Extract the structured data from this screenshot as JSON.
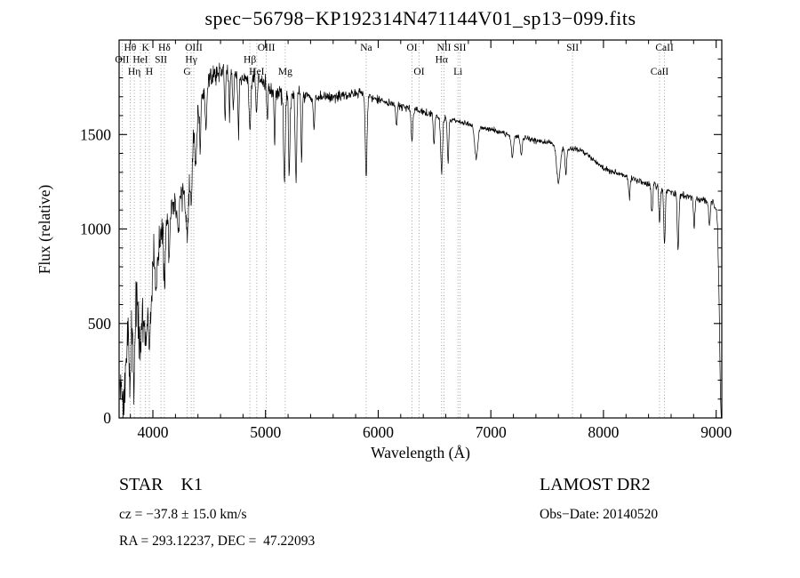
{
  "chart_data": {
    "type": "line",
    "title": "spec−56798−KP192314N471144V01_sp13−099.fits",
    "xlabel": "Wavelength (Å)",
    "ylabel": "Flux (relative)",
    "xlim": [
      3700,
      9050
    ],
    "ylim": [
      0,
      2000
    ],
    "x_ticks": [
      4000,
      5000,
      6000,
      7000,
      8000,
      9000
    ],
    "y_ticks": [
      0,
      500,
      1000,
      1500
    ],
    "x_minor_step": 200,
    "y_minor_step": 100,
    "grid": false,
    "legend": "none",
    "line_color": "#000000",
    "marker_line_color": "#8d8d8d",
    "sample_step": 3,
    "seed": 42,
    "spectral_lines": [
      {
        "label": "OII",
        "wavelength": 3727,
        "row": 2
      },
      {
        "label": "Hθ",
        "wavelength": 3798,
        "row": 1
      },
      {
        "label": "Hη",
        "wavelength": 3835,
        "row": 3
      },
      {
        "label": "HeI",
        "wavelength": 3889,
        "row": 2
      },
      {
        "label": "K",
        "wavelength": 3934,
        "row": 1
      },
      {
        "label": "H",
        "wavelength": 3968,
        "row": 3
      },
      {
        "label": "SII",
        "wavelength": 4072,
        "row": 2
      },
      {
        "label": "Hδ",
        "wavelength": 4102,
        "row": 1
      },
      {
        "label": "G",
        "wavelength": 4304,
        "row": 3
      },
      {
        "label": "Hγ",
        "wavelength": 4340,
        "row": 2
      },
      {
        "label": "OIII",
        "wavelength": 4363,
        "row": 1
      },
      {
        "label": "Hβ",
        "wavelength": 4861,
        "row": 2
      },
      {
        "label": "HeI",
        "wavelength": 4922,
        "row": 3
      },
      {
        "label": "OIII",
        "wavelength": 5007,
        "row": 1
      },
      {
        "label": "Mg",
        "wavelength": 5175,
        "row": 3
      },
      {
        "label": "Na",
        "wavelength": 5893,
        "row": 1
      },
      {
        "label": "OI",
        "wavelength": 6300,
        "row": 1
      },
      {
        "label": "OI",
        "wavelength": 6363,
        "row": 3
      },
      {
        "label": "Hα",
        "wavelength": 6563,
        "row": 2
      },
      {
        "label": "NII",
        "wavelength": 6584,
        "row": 1
      },
      {
        "label": "Li",
        "wavelength": 6708,
        "row": 3
      },
      {
        "label": "SII",
        "wavelength": 6725,
        "row": 1
      },
      {
        "label": "SII",
        "wavelength": 7725,
        "row": 1
      },
      {
        "label": "CaII",
        "wavelength": 8498,
        "row": 3
      },
      {
        "label": "CaII",
        "wavelength": 8542,
        "row": 1
      }
    ],
    "continuum": [
      [
        3700,
        60
      ],
      [
        3720,
        220
      ],
      [
        3735,
        120
      ],
      [
        3750,
        420
      ],
      [
        3765,
        240
      ],
      [
        3780,
        520
      ],
      [
        3795,
        380
      ],
      [
        3810,
        560
      ],
      [
        3830,
        420
      ],
      [
        3850,
        640
      ],
      [
        3870,
        500
      ],
      [
        3890,
        700
      ],
      [
        3910,
        560
      ],
      [
        3930,
        760
      ],
      [
        3950,
        640
      ],
      [
        3970,
        800
      ],
      [
        3990,
        720
      ],
      [
        4010,
        900
      ],
      [
        4040,
        840
      ],
      [
        4070,
        980
      ],
      [
        4100,
        1020
      ],
      [
        4130,
        1060
      ],
      [
        4160,
        1090
      ],
      [
        4200,
        1130
      ],
      [
        4240,
        1170
      ],
      [
        4280,
        1230
      ],
      [
        4320,
        1340
      ],
      [
        4360,
        1480
      ],
      [
        4400,
        1620
      ],
      [
        4450,
        1720
      ],
      [
        4500,
        1780
      ],
      [
        4550,
        1820
      ],
      [
        4600,
        1845
      ],
      [
        4650,
        1840
      ],
      [
        4700,
        1825
      ],
      [
        4750,
        1810
      ],
      [
        4800,
        1800
      ],
      [
        4850,
        1795
      ],
      [
        4900,
        1800
      ],
      [
        4950,
        1785
      ],
      [
        5000,
        1765
      ],
      [
        5050,
        1745
      ],
      [
        5100,
        1730
      ],
      [
        5150,
        1715
      ],
      [
        5200,
        1705
      ],
      [
        5250,
        1710
      ],
      [
        5300,
        1715
      ],
      [
        5350,
        1710
      ],
      [
        5400,
        1700
      ],
      [
        5500,
        1698
      ],
      [
        5600,
        1700
      ],
      [
        5700,
        1705
      ],
      [
        5800,
        1715
      ],
      [
        5850,
        1720
      ],
      [
        5900,
        1710
      ],
      [
        5950,
        1695
      ],
      [
        6000,
        1685
      ],
      [
        6100,
        1665
      ],
      [
        6200,
        1650
      ],
      [
        6300,
        1635
      ],
      [
        6400,
        1615
      ],
      [
        6500,
        1600
      ],
      [
        6600,
        1585
      ],
      [
        6700,
        1570
      ],
      [
        6800,
        1555
      ],
      [
        6900,
        1540
      ],
      [
        7000,
        1525
      ],
      [
        7100,
        1510
      ],
      [
        7200,
        1495
      ],
      [
        7300,
        1480
      ],
      [
        7400,
        1468
      ],
      [
        7500,
        1458
      ],
      [
        7600,
        1445
      ],
      [
        7700,
        1428
      ],
      [
        7800,
        1412
      ],
      [
        7850,
        1400
      ],
      [
        7900,
        1375
      ],
      [
        7950,
        1345
      ],
      [
        8000,
        1322
      ],
      [
        8100,
        1300
      ],
      [
        8200,
        1280
      ],
      [
        8300,
        1258
      ],
      [
        8400,
        1238
      ],
      [
        8500,
        1218
      ],
      [
        8600,
        1200
      ],
      [
        8700,
        1182
      ],
      [
        8800,
        1166
      ],
      [
        8900,
        1150
      ],
      [
        8960,
        1138
      ],
      [
        9000,
        1115
      ],
      [
        9012,
        1020
      ],
      [
        9022,
        760
      ],
      [
        9032,
        380
      ],
      [
        9040,
        80
      ],
      [
        9045,
        0
      ]
    ],
    "absorption_features": [
      {
        "wavelength": 3748,
        "depth": 250,
        "width": 6
      },
      {
        "wavelength": 3798,
        "depth": 260,
        "width": 8
      },
      {
        "wavelength": 3835,
        "depth": 240,
        "width": 8
      },
      {
        "wavelength": 3889,
        "depth": 280,
        "width": 8
      },
      {
        "wavelength": 3934,
        "depth": 430,
        "width": 10
      },
      {
        "wavelength": 3970,
        "depth": 380,
        "width": 10
      },
      {
        "wavelength": 4026,
        "depth": 200,
        "width": 7
      },
      {
        "wavelength": 4102,
        "depth": 300,
        "width": 9
      },
      {
        "wavelength": 4144,
        "depth": 180,
        "width": 7
      },
      {
        "wavelength": 4226,
        "depth": 200,
        "width": 7
      },
      {
        "wavelength": 4304,
        "depth": 330,
        "width": 12
      },
      {
        "wavelength": 4340,
        "depth": 260,
        "width": 9
      },
      {
        "wavelength": 4383,
        "depth": 220,
        "width": 7
      },
      {
        "wavelength": 4420,
        "depth": 260,
        "width": 5
      },
      {
        "wavelength": 4471,
        "depth": 200,
        "width": 7
      },
      {
        "wavelength": 4640,
        "depth": 280,
        "width": 5
      },
      {
        "wavelength": 4680,
        "depth": 220,
        "width": 4
      },
      {
        "wavelength": 4713,
        "depth": 180,
        "width": 6
      },
      {
        "wavelength": 4760,
        "depth": 320,
        "width": 5
      },
      {
        "wavelength": 4861,
        "depth": 240,
        "width": 9
      },
      {
        "wavelength": 4920,
        "depth": 160,
        "width": 6
      },
      {
        "wavelength": 5015,
        "depth": 160,
        "width": 6
      },
      {
        "wavelength": 5080,
        "depth": 300,
        "width": 5
      },
      {
        "wavelength": 5167,
        "depth": 480,
        "width": 7
      },
      {
        "wavelength": 5210,
        "depth": 420,
        "width": 6
      },
      {
        "wavelength": 5270,
        "depth": 460,
        "width": 7
      },
      {
        "wavelength": 5320,
        "depth": 380,
        "width": 5
      },
      {
        "wavelength": 5430,
        "depth": 180,
        "width": 6
      },
      {
        "wavelength": 5893,
        "depth": 430,
        "width": 8
      },
      {
        "wavelength": 6162,
        "depth": 120,
        "width": 6
      },
      {
        "wavelength": 6300,
        "depth": 170,
        "width": 7
      },
      {
        "wavelength": 6495,
        "depth": 150,
        "width": 6
      },
      {
        "wavelength": 6563,
        "depth": 290,
        "width": 8
      },
      {
        "wavelength": 6620,
        "depth": 240,
        "width": 6
      },
      {
        "wavelength": 6870,
        "depth": 170,
        "width": 14
      },
      {
        "wavelength": 7190,
        "depth": 110,
        "width": 10
      },
      {
        "wavelength": 7270,
        "depth": 100,
        "width": 8
      },
      {
        "wavelength": 7600,
        "depth": 200,
        "width": 16
      },
      {
        "wavelength": 7665,
        "depth": 140,
        "width": 8
      },
      {
        "wavelength": 8230,
        "depth": 110,
        "width": 7
      },
      {
        "wavelength": 8430,
        "depth": 140,
        "width": 7
      },
      {
        "wavelength": 8498,
        "depth": 200,
        "width": 6
      },
      {
        "wavelength": 8542,
        "depth": 290,
        "width": 7
      },
      {
        "wavelength": 8662,
        "depth": 310,
        "width": 7
      },
      {
        "wavelength": 8805,
        "depth": 160,
        "width": 6
      },
      {
        "wavelength": 8940,
        "depth": 120,
        "width": 6
      }
    ],
    "noise_profile": [
      {
        "up_to": 3950,
        "sigma": 130
      },
      {
        "up_to": 4150,
        "sigma": 95
      },
      {
        "up_to": 4400,
        "sigma": 70
      },
      {
        "up_to": 4700,
        "sigma": 48
      },
      {
        "up_to": 5350,
        "sigma": 40
      },
      {
        "up_to": 5900,
        "sigma": 25
      },
      {
        "up_to": 6600,
        "sigma": 20
      },
      {
        "up_to": 7600,
        "sigma": 13
      },
      {
        "up_to": 8400,
        "sigma": 15
      },
      {
        "up_to": 9100,
        "sigma": 18
      }
    ]
  },
  "annotations": {
    "object_type": "STAR    K1",
    "survey": "LAMOST DR2",
    "cz": "cz = −37.8 ± 15.0 km/s",
    "obs_date": "Obs−Date: 20140520",
    "coords": "RA = 293.12237, DEC =  47.22093"
  }
}
